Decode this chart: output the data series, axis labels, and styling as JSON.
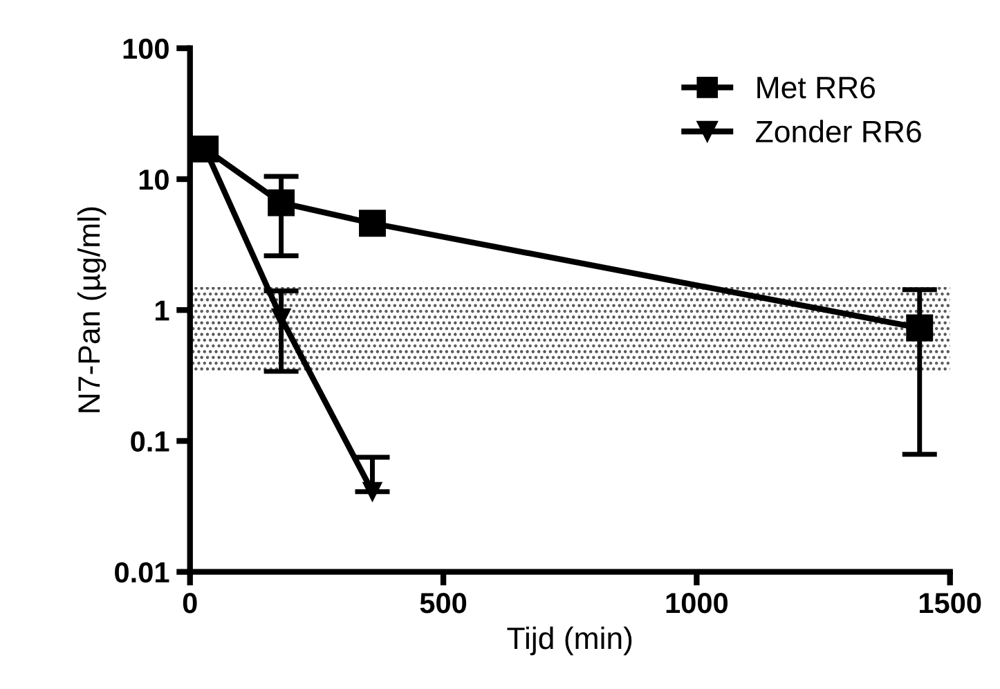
{
  "chart_data": {
    "type": "line",
    "xlabel": "Tijd (min)",
    "ylabel": "N7-Pan (µg/ml)",
    "log": "y",
    "xlim": [
      0,
      1500
    ],
    "xticks": [
      0,
      500,
      1000,
      1500
    ],
    "ylim": [
      0.01,
      100
    ],
    "yticks": [
      0.01,
      0.1,
      1,
      10,
      100
    ],
    "grid": false,
    "legend": "top right",
    "line_style": "solid",
    "bands": [
      {
        "axis": "y",
        "from": 0.33,
        "to": 1.5,
        "color": "#555555"
      }
    ],
    "series": [
      {
        "name": "Met RR6",
        "color": "#000000",
        "marker": "square",
        "x": [
          30,
          180,
          360,
          1440
        ],
        "values": [
          17,
          6.6,
          4.6,
          0.73
        ],
        "errors": [
          null,
          [
            2.6,
            10.5
          ],
          null,
          [
            0.079,
            1.43
          ]
        ]
      },
      {
        "name": "Zonder RR6",
        "color": "#000000",
        "marker": "triangle",
        "x": [
          30,
          180,
          360
        ],
        "values": [
          17,
          0.87,
          0.041
        ],
        "errors": [
          null,
          [
            0.34,
            1.4
          ],
          [
            0.041,
            0.075
          ]
        ]
      }
    ]
  }
}
